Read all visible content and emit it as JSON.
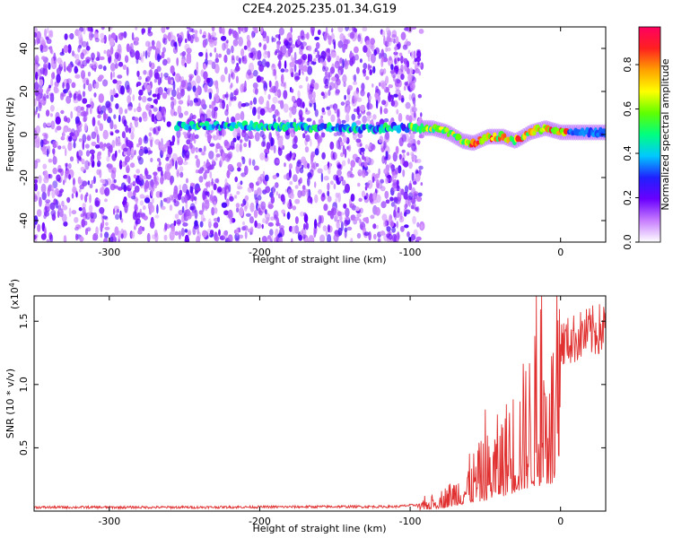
{
  "title": "C2E4.2025.235.01.34.G19",
  "chart_data": [
    {
      "type": "heatmap",
      "name": "spectrogram",
      "xlabel": "Height of straight line (km)",
      "ylabel": "Frequency (Hz)",
      "xlim": [
        -350,
        30
      ],
      "ylim": [
        -50,
        50
      ],
      "xticks": [
        -300,
        -200,
        -100,
        0
      ],
      "yticks": [
        -40,
        -20,
        0,
        20,
        40
      ],
      "colorbar": {
        "label": "Normalized spectral amplitude",
        "range": [
          0.0,
          0.97
        ],
        "ticks": [
          0.0,
          0.2,
          0.4,
          0.6,
          0.8
        ],
        "tick_labels": [
          "0.0",
          "0.2",
          "0.4",
          "0.6",
          "0.8"
        ],
        "colors": [
          "#ffffff",
          "#c77dff",
          "#6a00ff",
          "#2020ff",
          "#00c8ff",
          "#00ff80",
          "#60ff00",
          "#ffff00",
          "#ffa000",
          "#ff2020",
          "#ff0060"
        ]
      },
      "noise_region_x": [
        -350,
        -92
      ],
      "signal_track": [
        {
          "x": -255,
          "y": 4
        },
        {
          "x": -200,
          "y": 4
        },
        {
          "x": -150,
          "y": 3
        },
        {
          "x": -100,
          "y": 3
        },
        {
          "x": -85,
          "y": 3
        },
        {
          "x": -75,
          "y": 1
        },
        {
          "x": -65,
          "y": -3
        },
        {
          "x": -58,
          "y": -4
        },
        {
          "x": -48,
          "y": -1
        },
        {
          "x": -38,
          "y": -1
        },
        {
          "x": -30,
          "y": -3
        },
        {
          "x": -20,
          "y": 1
        },
        {
          "x": -10,
          "y": 3
        },
        {
          "x": 0,
          "y": 1
        },
        {
          "x": 30,
          "y": 1
        }
      ]
    },
    {
      "type": "line",
      "name": "snr",
      "xlabel": "Height of straight line (km)",
      "ylabel": "SNR (10 * v/v)",
      "y_scale_label": "(x10",
      "y_scale_exponent": "4",
      "y_scale_suffix": ")",
      "xlim": [
        -350,
        30
      ],
      "ylim": [
        0,
        1.7
      ],
      "xticks": [
        -300,
        -200,
        -100,
        0
      ],
      "yticks": [
        0.5,
        1.0,
        1.5
      ],
      "ytick_labels": [
        "0.5",
        "1.0",
        "1.5"
      ],
      "color": "#e03030",
      "series": [
        {
          "name": "SNR envelope",
          "points": [
            [
              -350,
              0.03
            ],
            [
              -250,
              0.03
            ],
            [
              -150,
              0.035
            ],
            [
              -110,
              0.035
            ],
            [
              -95,
              0.05
            ],
            [
              -85,
              0.12
            ],
            [
              -75,
              0.2
            ],
            [
              -65,
              0.35
            ],
            [
              -58,
              0.45
            ],
            [
              -50,
              0.55
            ],
            [
              -42,
              0.7
            ],
            [
              -35,
              0.85
            ],
            [
              -25,
              1.1
            ],
            [
              -18,
              1.3
            ],
            [
              -10,
              1.35
            ],
            [
              0,
              1.4
            ],
            [
              15,
              1.48
            ],
            [
              30,
              1.54
            ]
          ]
        }
      ]
    }
  ]
}
